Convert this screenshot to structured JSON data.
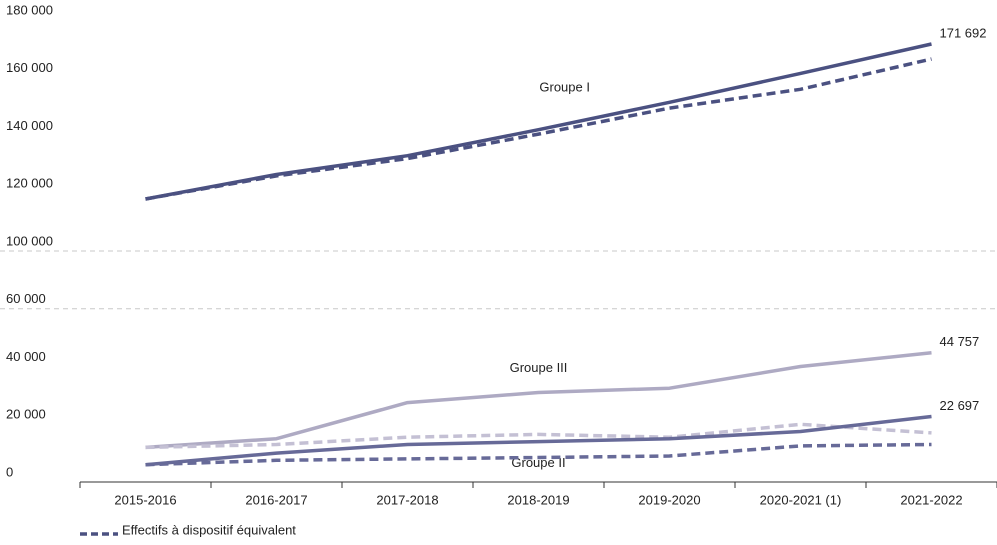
{
  "chart_data": {
    "type": "line",
    "categories": [
      "2015-2016",
      "2016-2017",
      "2017-2018",
      "2018-2019",
      "2019-2020",
      "2020-2021 (1)",
      "2021-2022"
    ],
    "ylim": [
      0,
      180000
    ],
    "ybreak": [
      60000,
      100000
    ],
    "yticks": [
      0,
      {
        "value": 20000,
        "label": "20 000"
      },
      {
        "value": 40000,
        "label": "40 000"
      },
      {
        "value": 60000,
        "label": "60 000"
      },
      {
        "value": 100000,
        "label": "100 000"
      },
      {
        "value": 120000,
        "label": "120 000"
      },
      {
        "value": 140000,
        "label": "140 000"
      },
      {
        "value": 160000,
        "label": "160 000"
      },
      {
        "value": 180000,
        "label": "180 000"
      }
    ],
    "grid_at": [
      60000,
      100000
    ],
    "series": [
      {
        "name": "Groupe I",
        "color": "#4b5181",
        "dashed": false,
        "values": [
          118000,
          126500,
          133000,
          142000,
          151500,
          161500,
          171692
        ],
        "value_labels": [
          null,
          null,
          null,
          null,
          null,
          null,
          "171 692"
        ]
      },
      {
        "color": "#4b5181",
        "dashed": true,
        "values": [
          118000,
          126000,
          132000,
          140500,
          149500,
          156000,
          166500
        ]
      },
      {
        "name": "Groupe III",
        "color": "#aeaac3",
        "dashed": false,
        "values": [
          12000,
          15000,
          27500,
          31000,
          32500,
          40000,
          44757
        ],
        "value_labels": [
          null,
          null,
          null,
          null,
          null,
          null,
          "44 757"
        ]
      },
      {
        "color": "#c4c0d4",
        "dashed": true,
        "values": [
          12000,
          13000,
          15500,
          16500,
          15500,
          20000,
          17000
        ]
      },
      {
        "name": "Groupe II",
        "color": "#676a98",
        "dashed": false,
        "values": [
          6000,
          10000,
          13000,
          14000,
          15000,
          17500,
          22697
        ],
        "value_labels": [
          null,
          null,
          null,
          null,
          null,
          null,
          "22 697"
        ]
      },
      {
        "color": "#676a98",
        "dashed": true,
        "values": [
          6000,
          7500,
          8000,
          8500,
          9000,
          12500,
          13000
        ]
      }
    ],
    "legend": {
      "label": "Effectifs à dispositif équivalent",
      "color": "#4b5181"
    }
  }
}
